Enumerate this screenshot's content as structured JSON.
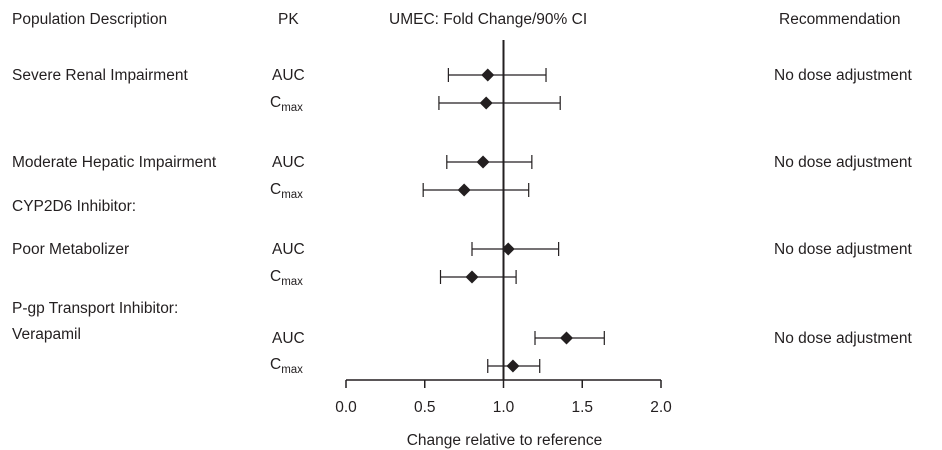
{
  "headers": {
    "population": "Population Description",
    "pk": "PK",
    "chart": "UMEC: Fold Change/90% CI",
    "recommendation": "Recommendation"
  },
  "groups": [
    {
      "title": "Severe Renal Impairment",
      "recommendation": "No dose adjustment"
    },
    {
      "title": "Moderate Hepatic Impairment",
      "recommendation": "No dose adjustment"
    },
    {
      "title": "CYP2D6 Inhibitor:",
      "subtitle": "Poor Metabolizer",
      "recommendation": "No dose adjustment"
    },
    {
      "title": "P-gp Transport Inhibitor:",
      "subtitle": "Verapamil",
      "recommendation": "No dose adjustment"
    }
  ],
  "pk_labels": {
    "auc": "AUC",
    "cmax_main": "C",
    "cmax_sub": "max"
  },
  "chart_data": {
    "type": "scatter",
    "subtype": "forest-plot",
    "title": "UMEC: Fold Change/90% CI",
    "xlabel": "Change relative to reference",
    "xlim": [
      0.0,
      2.0
    ],
    "xticks": [
      "0.0",
      "0.5",
      "1.0",
      "1.5",
      "2.0"
    ],
    "reference_line": 1.0,
    "rows": [
      {
        "group": "Severe Renal Impairment",
        "pk": "AUC",
        "estimate": 0.9,
        "lower": 0.65,
        "upper": 1.27
      },
      {
        "group": "Severe Renal Impairment",
        "pk": "Cmax",
        "estimate": 0.89,
        "lower": 0.59,
        "upper": 1.36
      },
      {
        "group": "Moderate Hepatic Impairment",
        "pk": "AUC",
        "estimate": 0.87,
        "lower": 0.64,
        "upper": 1.18
      },
      {
        "group": "Moderate Hepatic Impairment",
        "pk": "Cmax",
        "estimate": 0.75,
        "lower": 0.49,
        "upper": 1.16
      },
      {
        "group": "CYP2D6 Inhibitor: Poor Metabolizer",
        "pk": "AUC",
        "estimate": 1.03,
        "lower": 0.8,
        "upper": 1.35
      },
      {
        "group": "CYP2D6 Inhibitor: Poor Metabolizer",
        "pk": "Cmax",
        "estimate": 0.8,
        "lower": 0.6,
        "upper": 1.08
      },
      {
        "group": "P-gp Transport Inhibitor: Verapamil",
        "pk": "AUC",
        "estimate": 1.4,
        "lower": 1.2,
        "upper": 1.64
      },
      {
        "group": "P-gp Transport Inhibitor: Verapamil",
        "pk": "Cmax",
        "estimate": 1.06,
        "lower": 0.9,
        "upper": 1.23
      }
    ]
  }
}
